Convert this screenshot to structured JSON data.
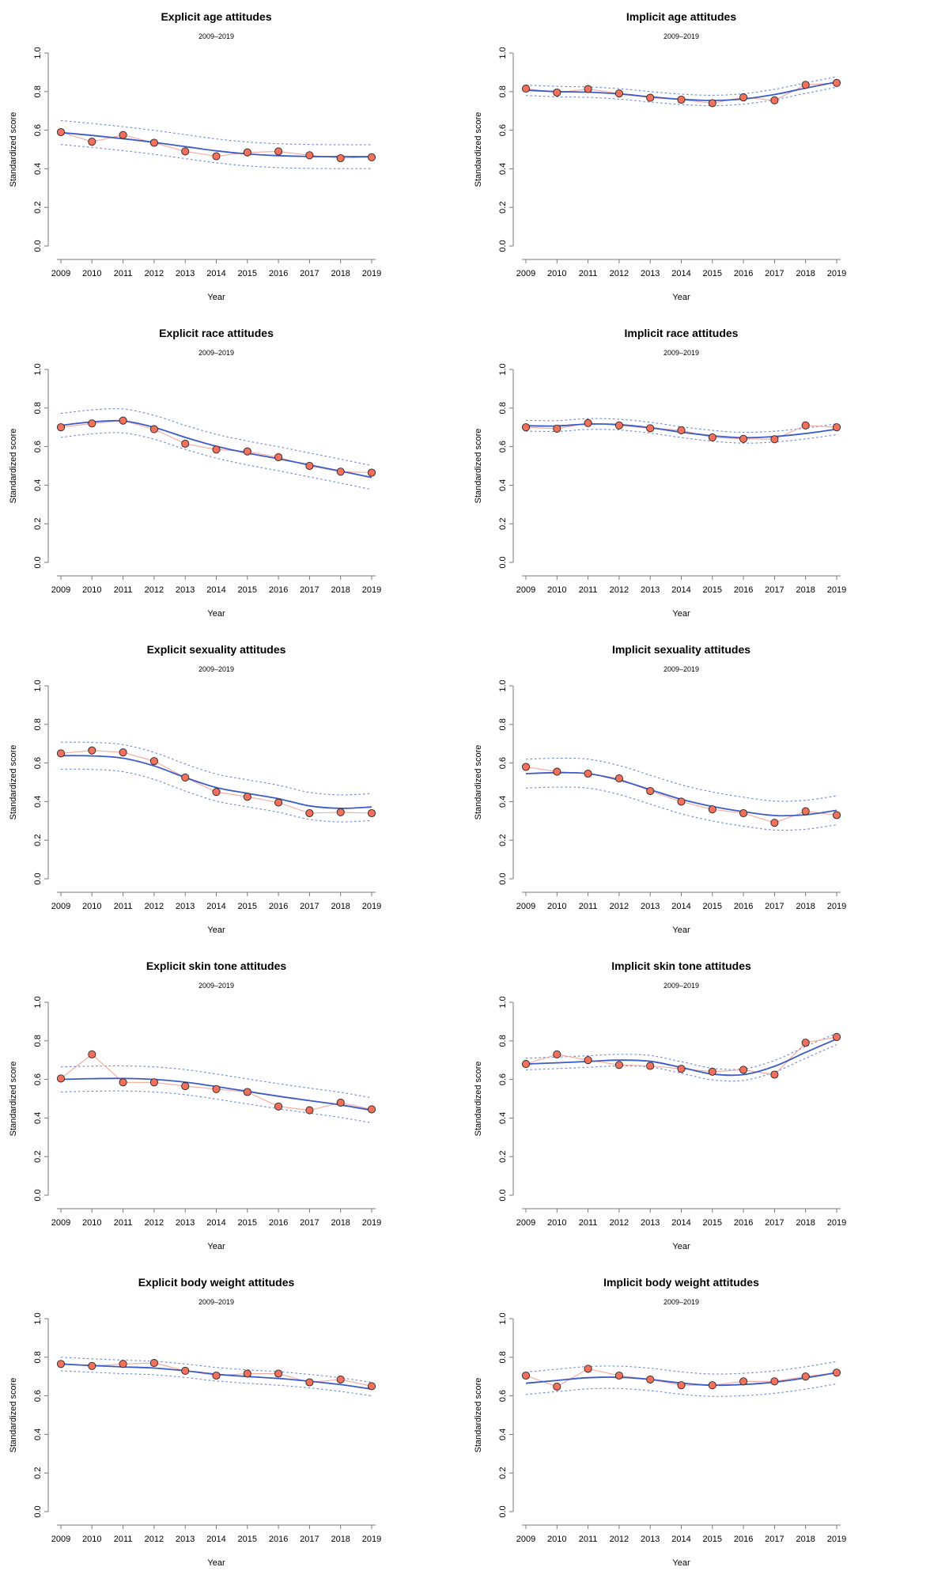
{
  "figure": {
    "xlabel": "Year",
    "ylabel": "Standardized score",
    "subtitle": "2009–2019",
    "colors": {
      "background": "#ffffff",
      "point_fill": "#f3705c",
      "point_stroke": "#262626",
      "data_line": "#f6a69b",
      "trend_line": "#3b5bc9",
      "band_line": "#4d6fd6",
      "axis": "#7a7a7a",
      "text": "#000000"
    },
    "grid": {
      "rows": 5,
      "cols": 2
    }
  },
  "chart_data": [
    {
      "type": "line",
      "title": "Explicit age attitudes",
      "subtitle": "2009–2019",
      "xlabel": "Year",
      "ylabel": "Standardized score",
      "x": [
        2009,
        2010,
        2011,
        2012,
        2013,
        2014,
        2015,
        2016,
        2017,
        2018,
        2019
      ],
      "ylim": [
        0.0,
        1.0
      ],
      "yticks": [
        0.0,
        0.2,
        0.4,
        0.6,
        0.8,
        1.0
      ],
      "series": [
        {
          "name": "annual mean",
          "style": "points",
          "values": [
            0.59,
            0.54,
            0.575,
            0.535,
            0.49,
            0.465,
            0.485,
            0.49,
            0.47,
            0.455,
            0.46
          ]
        },
        {
          "name": "smoothed trend",
          "style": "smooth-line",
          "values": [
            0.588,
            0.573,
            0.556,
            0.537,
            0.515,
            0.493,
            0.477,
            0.468,
            0.464,
            0.463,
            0.463
          ]
        },
        {
          "name": "confidence band",
          "style": "dashed-band",
          "half_width": 0.062
        }
      ]
    },
    {
      "type": "line",
      "title": "Implicit age attitudes",
      "subtitle": "2009–2019",
      "xlabel": "Year",
      "ylabel": "Standardized score",
      "x": [
        2009,
        2010,
        2011,
        2012,
        2013,
        2014,
        2015,
        2016,
        2017,
        2018,
        2019
      ],
      "ylim": [
        0.0,
        1.0
      ],
      "yticks": [
        0.0,
        0.2,
        0.4,
        0.6,
        0.8,
        1.0
      ],
      "series": [
        {
          "name": "annual mean",
          "style": "points",
          "values": [
            0.815,
            0.795,
            0.813,
            0.79,
            0.768,
            0.758,
            0.74,
            0.77,
            0.755,
            0.835,
            0.845
          ]
        },
        {
          "name": "smoothed trend",
          "style": "smooth-line",
          "values": [
            0.807,
            0.8,
            0.797,
            0.788,
            0.773,
            0.76,
            0.754,
            0.762,
            0.785,
            0.818,
            0.85
          ]
        },
        {
          "name": "confidence band",
          "style": "dashed-band",
          "half_width": 0.027
        }
      ]
    },
    {
      "type": "line",
      "title": "Explicit race attitudes",
      "subtitle": "2009–2019",
      "xlabel": "Year",
      "ylabel": "Standardized score",
      "x": [
        2009,
        2010,
        2011,
        2012,
        2013,
        2014,
        2015,
        2016,
        2017,
        2018,
        2019
      ],
      "ylim": [
        0.0,
        1.0
      ],
      "yticks": [
        0.0,
        0.2,
        0.4,
        0.6,
        0.8,
        1.0
      ],
      "series": [
        {
          "name": "annual mean",
          "style": "points",
          "values": [
            0.7,
            0.72,
            0.735,
            0.69,
            0.615,
            0.585,
            0.575,
            0.545,
            0.5,
            0.47,
            0.465
          ]
        },
        {
          "name": "smoothed trend",
          "style": "smooth-line",
          "values": [
            0.71,
            0.728,
            0.733,
            0.7,
            0.648,
            0.602,
            0.567,
            0.537,
            0.505,
            0.473,
            0.44
          ]
        },
        {
          "name": "confidence band",
          "style": "dashed-band",
          "half_width": 0.062
        }
      ]
    },
    {
      "type": "line",
      "title": "Implicit race attitudes",
      "subtitle": "2009–2019",
      "xlabel": "Year",
      "ylabel": "Standardized score",
      "x": [
        2009,
        2010,
        2011,
        2012,
        2013,
        2014,
        2015,
        2016,
        2017,
        2018,
        2019
      ],
      "ylim": [
        0.0,
        1.0
      ],
      "yticks": [
        0.0,
        0.2,
        0.4,
        0.6,
        0.8,
        1.0
      ],
      "series": [
        {
          "name": "annual mean",
          "style": "points",
          "values": [
            0.7,
            0.693,
            0.722,
            0.71,
            0.695,
            0.685,
            0.648,
            0.64,
            0.638,
            0.71,
            0.7
          ]
        },
        {
          "name": "smoothed trend",
          "style": "smooth-line",
          "values": [
            0.708,
            0.707,
            0.717,
            0.714,
            0.698,
            0.675,
            0.656,
            0.646,
            0.652,
            0.668,
            0.69
          ]
        },
        {
          "name": "confidence band",
          "style": "dashed-band",
          "half_width": 0.028
        }
      ]
    },
    {
      "type": "line",
      "title": "Explicit sexuality attitudes",
      "subtitle": "2009–2019",
      "xlabel": "Year",
      "ylabel": "Standardized score",
      "x": [
        2009,
        2010,
        2011,
        2012,
        2013,
        2014,
        2015,
        2016,
        2017,
        2018,
        2019
      ],
      "ylim": [
        0.0,
        1.0
      ],
      "yticks": [
        0.0,
        0.2,
        0.4,
        0.6,
        0.8,
        1.0
      ],
      "series": [
        {
          "name": "annual mean",
          "style": "points",
          "values": [
            0.65,
            0.665,
            0.655,
            0.61,
            0.525,
            0.45,
            0.425,
            0.395,
            0.34,
            0.345,
            0.34
          ]
        },
        {
          "name": "smoothed trend",
          "style": "smooth-line",
          "values": [
            0.638,
            0.637,
            0.625,
            0.585,
            0.525,
            0.473,
            0.443,
            0.415,
            0.378,
            0.365,
            0.372
          ]
        },
        {
          "name": "confidence band",
          "style": "dashed-band",
          "half_width": 0.07
        }
      ]
    },
    {
      "type": "line",
      "title": "Implicit sexuality attitudes",
      "subtitle": "2009–2019",
      "xlabel": "Year",
      "ylabel": "Standardized score",
      "x": [
        2009,
        2010,
        2011,
        2012,
        2013,
        2014,
        2015,
        2016,
        2017,
        2018,
        2019
      ],
      "ylim": [
        0.0,
        1.0
      ],
      "yticks": [
        0.0,
        0.2,
        0.4,
        0.6,
        0.8,
        1.0
      ],
      "series": [
        {
          "name": "annual mean",
          "style": "points",
          "values": [
            0.58,
            0.555,
            0.545,
            0.52,
            0.455,
            0.4,
            0.36,
            0.34,
            0.29,
            0.35,
            0.33
          ]
        },
        {
          "name": "smoothed trend",
          "style": "smooth-line",
          "values": [
            0.545,
            0.55,
            0.545,
            0.512,
            0.462,
            0.412,
            0.375,
            0.348,
            0.328,
            0.332,
            0.355
          ]
        },
        {
          "name": "confidence band",
          "style": "dashed-band",
          "half_width": 0.075
        }
      ]
    },
    {
      "type": "line",
      "title": "Explicit skin tone attitudes",
      "subtitle": "2009–2019",
      "xlabel": "Year",
      "ylabel": "Standardized score",
      "x": [
        2009,
        2010,
        2011,
        2012,
        2013,
        2014,
        2015,
        2016,
        2017,
        2018,
        2019
      ],
      "ylim": [
        0.0,
        1.0
      ],
      "yticks": [
        0.0,
        0.2,
        0.4,
        0.6,
        0.8,
        1.0
      ],
      "series": [
        {
          "name": "annual mean",
          "style": "points",
          "values": [
            0.605,
            0.73,
            0.585,
            0.585,
            0.565,
            0.55,
            0.535,
            0.46,
            0.44,
            0.48,
            0.445
          ]
        },
        {
          "name": "smoothed trend",
          "style": "smooth-line",
          "values": [
            0.6,
            0.604,
            0.605,
            0.6,
            0.586,
            0.563,
            0.538,
            0.513,
            0.49,
            0.468,
            0.44
          ]
        },
        {
          "name": "confidence band",
          "style": "dashed-band",
          "half_width": 0.065
        }
      ]
    },
    {
      "type": "line",
      "title": "Implicit skin tone attitudes",
      "subtitle": "2009–2019",
      "xlabel": "Year",
      "ylabel": "Standardized score",
      "x": [
        2009,
        2010,
        2011,
        2012,
        2013,
        2014,
        2015,
        2016,
        2017,
        2018,
        2019
      ],
      "ylim": [
        0.0,
        1.0
      ],
      "yticks": [
        0.0,
        0.2,
        0.4,
        0.6,
        0.8,
        1.0
      ],
      "series": [
        {
          "name": "annual mean",
          "style": "points",
          "values": [
            0.68,
            0.73,
            0.7,
            0.675,
            0.67,
            0.655,
            0.64,
            0.65,
            0.625,
            0.79,
            0.82
          ]
        },
        {
          "name": "smoothed trend",
          "style": "smooth-line",
          "values": [
            0.68,
            0.686,
            0.693,
            0.7,
            0.694,
            0.662,
            0.628,
            0.625,
            0.668,
            0.74,
            0.81
          ]
        },
        {
          "name": "confidence band",
          "style": "dashed-band",
          "half_width": 0.03
        }
      ]
    },
    {
      "type": "line",
      "title": "Explicit body weight attitudes",
      "subtitle": "2009–2019",
      "xlabel": "Year",
      "ylabel": "Standardized score",
      "x": [
        2009,
        2010,
        2011,
        2012,
        2013,
        2014,
        2015,
        2016,
        2017,
        2018,
        2019
      ],
      "ylim": [
        0.0,
        1.0
      ],
      "yticks": [
        0.0,
        0.2,
        0.4,
        0.6,
        0.8,
        1.0
      ],
      "series": [
        {
          "name": "annual mean",
          "style": "points",
          "values": [
            0.765,
            0.755,
            0.765,
            0.77,
            0.73,
            0.705,
            0.715,
            0.715,
            0.67,
            0.685,
            0.65
          ]
        },
        {
          "name": "smoothed trend",
          "style": "smooth-line",
          "values": [
            0.765,
            0.757,
            0.75,
            0.744,
            0.73,
            0.712,
            0.7,
            0.69,
            0.676,
            0.658,
            0.635
          ]
        },
        {
          "name": "confidence band",
          "style": "dashed-band",
          "half_width": 0.035
        }
      ]
    },
    {
      "type": "line",
      "title": "Implicit body weight attitudes",
      "subtitle": "2009–2019",
      "xlabel": "Year",
      "ylabel": "Standardized score",
      "x": [
        2009,
        2010,
        2011,
        2012,
        2013,
        2014,
        2015,
        2016,
        2017,
        2018,
        2019
      ],
      "ylim": [
        0.0,
        1.0
      ],
      "yticks": [
        0.0,
        0.2,
        0.4,
        0.6,
        0.8,
        1.0
      ],
      "series": [
        {
          "name": "annual mean",
          "style": "points",
          "values": [
            0.705,
            0.648,
            0.74,
            0.705,
            0.685,
            0.655,
            0.655,
            0.675,
            0.675,
            0.7,
            0.72
          ]
        },
        {
          "name": "smoothed trend",
          "style": "smooth-line",
          "values": [
            0.665,
            0.68,
            0.694,
            0.696,
            0.685,
            0.666,
            0.655,
            0.659,
            0.671,
            0.693,
            0.72
          ]
        },
        {
          "name": "confidence band",
          "style": "dashed-band",
          "half_width": 0.058
        }
      ]
    }
  ]
}
